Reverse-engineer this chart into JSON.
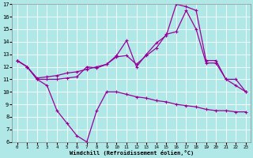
{
  "xlabel": "Windchill (Refroidissement éolien,°C)",
  "line_color": "#990099",
  "bg_color": "#b0e8e8",
  "grid_color": "#ffffff",
  "xlim": [
    -0.5,
    23.5
  ],
  "ylim": [
    6,
    17
  ],
  "xticks": [
    0,
    1,
    2,
    3,
    4,
    5,
    6,
    7,
    8,
    9,
    10,
    11,
    12,
    13,
    14,
    15,
    16,
    17,
    18,
    19,
    20,
    21,
    22,
    23
  ],
  "yticks": [
    6,
    7,
    8,
    9,
    10,
    11,
    12,
    13,
    14,
    15,
    16,
    17
  ],
  "line1_x": [
    0,
    1,
    2,
    3,
    4,
    5,
    6,
    7,
    8,
    9,
    10,
    11,
    12,
    13,
    14,
    15,
    16,
    17,
    18,
    19,
    20,
    21,
    22,
    23
  ],
  "line1_y": [
    12.5,
    12.0,
    11.0,
    10.5,
    8.5,
    7.5,
    6.5,
    6.0,
    8.5,
    10.0,
    10.0,
    9.8,
    9.6,
    9.5,
    9.3,
    9.2,
    9.0,
    8.9,
    8.8,
    8.6,
    8.5,
    8.5,
    8.4,
    8.4
  ],
  "line2_x": [
    0,
    1,
    2,
    3,
    4,
    5,
    6,
    7,
    8,
    9,
    10,
    11,
    12,
    13,
    14,
    15,
    16,
    17,
    18,
    19,
    20,
    21,
    22,
    23
  ],
  "line2_y": [
    12.5,
    12.0,
    11.0,
    11.0,
    11.0,
    11.1,
    11.2,
    12.0,
    11.9,
    12.2,
    12.9,
    14.1,
    12.0,
    13.0,
    13.9,
    14.5,
    17.0,
    16.8,
    16.5,
    12.5,
    12.5,
    11.0,
    10.5,
    10.0
  ],
  "line3_x": [
    0,
    1,
    2,
    3,
    4,
    5,
    6,
    7,
    8,
    9,
    10,
    11,
    12,
    13,
    14,
    15,
    16,
    17,
    18,
    19,
    20,
    21,
    22,
    23
  ],
  "line3_y": [
    12.5,
    12.0,
    11.1,
    11.2,
    11.3,
    11.5,
    11.6,
    11.8,
    12.0,
    12.2,
    12.8,
    12.9,
    12.2,
    12.9,
    13.5,
    14.6,
    14.8,
    16.5,
    15.0,
    12.3,
    12.3,
    11.0,
    11.0,
    10.0
  ],
  "marker": "+",
  "markersize": 3.5,
  "linewidth": 0.9
}
